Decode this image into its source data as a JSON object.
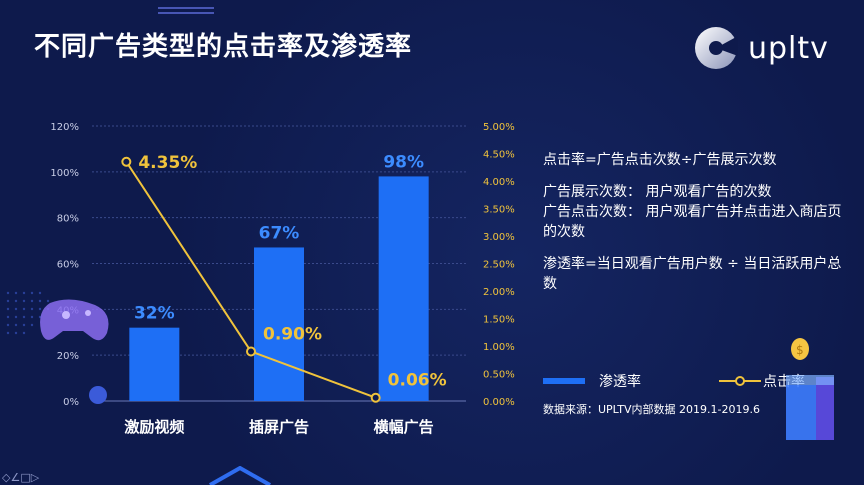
{
  "title": "不同广告类型的点击率及渗透率",
  "logo": {
    "text": "upltv"
  },
  "notes": [
    "点击率=广告点击次数÷广告展示次数",
    "广告展示次数： 用户观看广告的次数\n广告点击次数： 用户观看广告并点击进入商店页的次数",
    "渗透率=当日观看广告用户数 ÷ 当日活跃用户总数"
  ],
  "legend": {
    "bar": "渗透率",
    "line": "点击率"
  },
  "source": "数据来源：UPLTV内部数据  2019.1-2019.6",
  "colors": {
    "background": "#0e1a4c",
    "bar": "#1e6ff5",
    "bar_label": "#3c8cff",
    "line": "#f0c33c",
    "axis_right": "#f0c33c"
  },
  "chart_data": {
    "type": "bar",
    "categories": [
      "激励视频",
      "插屏广告",
      "横幅广告"
    ],
    "series": [
      {
        "name": "渗透率",
        "type": "bar",
        "axis": "left",
        "values": [
          32,
          67,
          98
        ],
        "labels": [
          "32%",
          "67%",
          "98%"
        ]
      },
      {
        "name": "点击率",
        "type": "line",
        "axis": "right",
        "values": [
          4.35,
          0.9,
          0.06
        ],
        "labels": [
          "4.35%",
          "0.90%",
          "0.06%"
        ]
      }
    ],
    "ylim_left": [
      0,
      120
    ],
    "yticks_left": [
      "0%",
      "20%",
      "40%",
      "60%",
      "80%",
      "100%",
      "120%"
    ],
    "ylim_right": [
      0,
      5
    ],
    "yticks_right": [
      "0.00%",
      "0.50%",
      "1.00%",
      "1.50%",
      "2.00%",
      "2.50%",
      "3.00%",
      "3.50%",
      "4.00%",
      "4.50%",
      "5.00%"
    ],
    "grid": true,
    "legend": "right"
  }
}
